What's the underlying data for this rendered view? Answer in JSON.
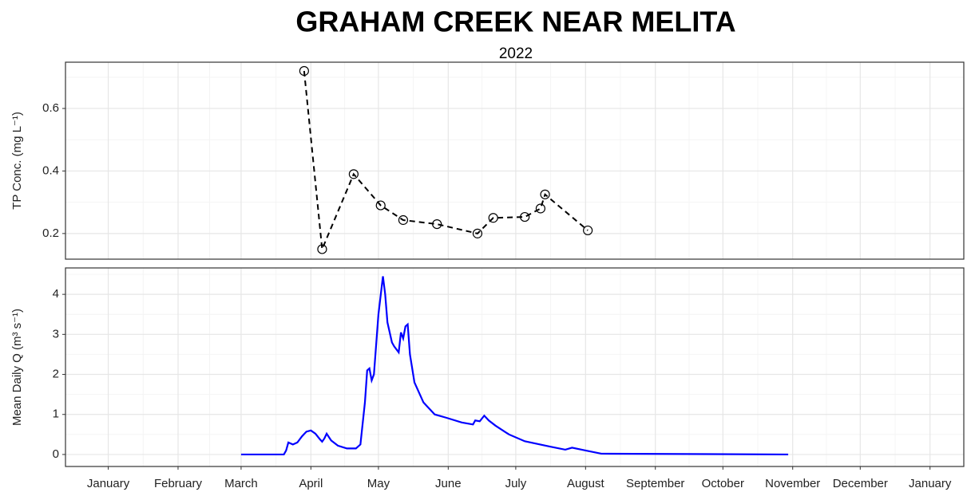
{
  "title": "GRAHAM CREEK NEAR MELITA",
  "subtitle": "2022",
  "chart_data": [
    {
      "type": "line",
      "ylabel": "TP Conc. (mg L⁻¹)",
      "color": "#000000",
      "dashed": true,
      "markers": true,
      "grid": true,
      "x": [
        "2022-03-29",
        "2022-04-06",
        "2022-04-20",
        "2022-05-02",
        "2022-05-12",
        "2022-05-27",
        "2022-06-14",
        "2022-06-21",
        "2022-07-05",
        "2022-07-12",
        "2022-07-14",
        "2022-08-02"
      ],
      "values": [
        0.72,
        0.15,
        0.39,
        0.29,
        0.243,
        0.23,
        0.2,
        0.25,
        0.253,
        0.28,
        0.325,
        0.21
      ],
      "xlim": [
        "2021-12-13",
        "2023-01-16"
      ],
      "ylim": [
        0.118,
        0.748
      ],
      "yticks": [
        0.2,
        0.4,
        0.6
      ]
    },
    {
      "type": "line",
      "ylabel": "Mean Daily Q (m³ s⁻¹)",
      "color": "#0000ff",
      "dashed": false,
      "markers": false,
      "grid": true,
      "x": [
        "2022-03-01",
        "2022-03-20",
        "2022-03-21",
        "2022-03-22",
        "2022-03-24",
        "2022-03-26",
        "2022-03-28",
        "2022-03-30",
        "2022-04-01",
        "2022-04-03",
        "2022-04-05",
        "2022-04-06",
        "2022-04-07",
        "2022-04-08",
        "2022-04-10",
        "2022-04-13",
        "2022-04-17",
        "2022-04-21",
        "2022-04-23",
        "2022-04-25",
        "2022-04-26",
        "2022-04-27",
        "2022-04-28",
        "2022-04-29",
        "2022-05-01",
        "2022-05-03",
        "2022-05-04",
        "2022-05-05",
        "2022-05-07",
        "2022-05-08",
        "2022-05-10",
        "2022-05-11",
        "2022-05-12",
        "2022-05-13",
        "2022-05-14",
        "2022-05-15",
        "2022-05-17",
        "2022-05-21",
        "2022-05-26",
        "2022-05-31",
        "2022-06-07",
        "2022-06-12",
        "2022-06-13",
        "2022-06-15",
        "2022-06-17",
        "2022-06-19",
        "2022-06-22",
        "2022-06-28",
        "2022-07-05",
        "2022-07-16",
        "2022-07-23",
        "2022-07-26",
        "2022-08-01",
        "2022-08-08",
        "2022-10-30"
      ],
      "values": [
        0,
        0,
        0.1,
        0.3,
        0.25,
        0.3,
        0.45,
        0.57,
        0.6,
        0.52,
        0.38,
        0.32,
        0.4,
        0.52,
        0.35,
        0.22,
        0.15,
        0.15,
        0.25,
        1.3,
        2.1,
        2.15,
        1.85,
        2.0,
        3.5,
        4.45,
        4.0,
        3.3,
        2.8,
        2.7,
        2.55,
        3.05,
        2.9,
        3.2,
        3.25,
        2.5,
        1.8,
        1.3,
        1.0,
        0.92,
        0.8,
        0.75,
        0.85,
        0.83,
        0.97,
        0.85,
        0.72,
        0.5,
        0.33,
        0.2,
        0.12,
        0.17,
        0.1,
        0.02,
        0
      ],
      "xlim": [
        "2021-12-13",
        "2023-01-16"
      ],
      "ylim": [
        -0.3,
        4.66
      ],
      "yticks": [
        0,
        1,
        2,
        3,
        4
      ],
      "xticks": [
        {
          "value": "2022-01-01",
          "label": "January"
        },
        {
          "value": "2022-02-01",
          "label": "February"
        },
        {
          "value": "2022-03-01",
          "label": "March"
        },
        {
          "value": "2022-04-01",
          "label": "April"
        },
        {
          "value": "2022-05-01",
          "label": "May"
        },
        {
          "value": "2022-06-01",
          "label": "June"
        },
        {
          "value": "2022-07-01",
          "label": "July"
        },
        {
          "value": "2022-08-01",
          "label": "August"
        },
        {
          "value": "2022-09-01",
          "label": "September"
        },
        {
          "value": "2022-10-01",
          "label": "October"
        },
        {
          "value": "2022-11-01",
          "label": "November"
        },
        {
          "value": "2022-12-01",
          "label": "December"
        },
        {
          "value": "2023-01-01",
          "label": "January"
        }
      ]
    }
  ]
}
